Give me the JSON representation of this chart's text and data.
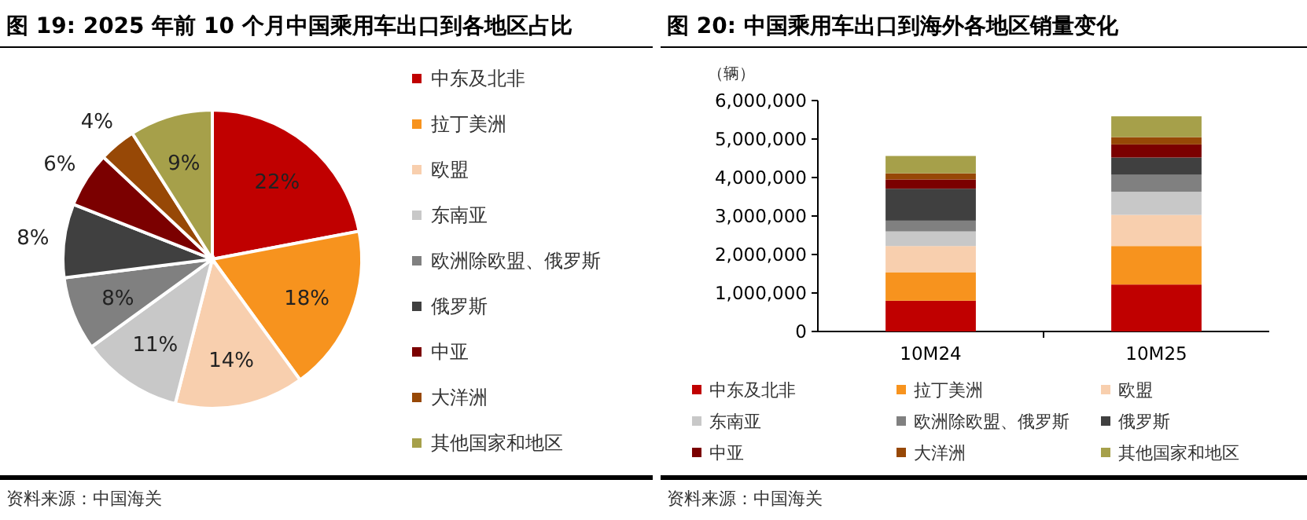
{
  "chart_data": [
    {
      "type": "pie",
      "title": "图 19: 2025 年前 10 个月中国乘用车出口到各地区占比",
      "categories": [
        "中东及北非",
        "拉丁美洲",
        "欧盟",
        "东南亚",
        "欧洲除欧盟、俄罗斯",
        "俄罗斯",
        "中亚",
        "大洋洲",
        "其他国家和地区"
      ],
      "values": [
        22,
        18,
        14,
        11,
        8,
        8,
        6,
        4,
        9
      ],
      "value_labels": [
        "22%",
        "18%",
        "14%",
        "11%",
        "8%",
        "8%",
        "6%",
        "4%",
        "9%"
      ],
      "colors": [
        "#c00000",
        "#f7931e",
        "#f8cfae",
        "#c8c8c8",
        "#808080",
        "#404040",
        "#7b0000",
        "#974806",
        "#a6a04a"
      ],
      "legend": "right",
      "annotations": [
        "资料来源：中国海关"
      ]
    },
    {
      "type": "bar",
      "stacked": true,
      "title": "图 20: 中国乘用车出口到海外各地区销量变化",
      "ylabel": "（辆）",
      "categories": [
        "10M24",
        "10M25"
      ],
      "series": [
        {
          "name": "中东及北非",
          "color": "#c00000",
          "values": [
            800000,
            1220000
          ]
        },
        {
          "name": "拉丁美洲",
          "color": "#f7931e",
          "values": [
            740000,
            1000000
          ]
        },
        {
          "name": "欧盟",
          "color": "#f8cfae",
          "values": [
            680000,
            810000
          ]
        },
        {
          "name": "东南亚",
          "color": "#c8c8c8",
          "values": [
            380000,
            600000
          ]
        },
        {
          "name": "欧洲除欧盟、俄罗斯",
          "color": "#808080",
          "values": [
            280000,
            440000
          ]
        },
        {
          "name": "俄罗斯",
          "color": "#404040",
          "values": [
            830000,
            450000
          ]
        },
        {
          "name": "中亚",
          "color": "#7b0000",
          "values": [
            240000,
            340000
          ]
        },
        {
          "name": "大洋洲",
          "color": "#974806",
          "values": [
            160000,
            190000
          ]
        },
        {
          "name": "其他国家和地区",
          "color": "#a6a04a",
          "values": [
            450000,
            540000
          ]
        }
      ],
      "ylim": [
        0,
        6000000
      ],
      "yticks": [
        {
          "value": 0,
          "label": "0"
        },
        {
          "value": 1000000,
          "label": "1,000,000"
        },
        {
          "value": 2000000,
          "label": "2,000,000"
        },
        {
          "value": 3000000,
          "label": "3,000,000"
        },
        {
          "value": 4000000,
          "label": "4,000,000"
        },
        {
          "value": 5000000,
          "label": "5,000,000"
        },
        {
          "value": 6000000,
          "label": "6,000,000"
        }
      ],
      "legend": "bottom",
      "annotations": [
        "资料来源：中国海关"
      ]
    }
  ]
}
